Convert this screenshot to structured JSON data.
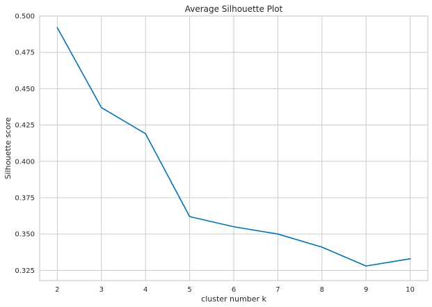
{
  "chart_data": {
    "type": "line",
    "title": "Average Silhouette Plot",
    "xlabel": "cluster number k",
    "ylabel": "Silhouette score",
    "x": [
      2,
      3,
      4,
      5,
      6,
      7,
      8,
      9,
      10
    ],
    "x_ticks": [
      "2",
      "3",
      "4",
      "5",
      "6",
      "7",
      "8",
      "9",
      "10"
    ],
    "xlim": [
      1.6,
      10.4
    ],
    "y_ticks": [
      "0.325",
      "0.350",
      "0.375",
      "0.400",
      "0.425",
      "0.450",
      "0.475",
      "0.500"
    ],
    "y_tick_values": [
      0.325,
      0.35,
      0.375,
      0.4,
      0.425,
      0.45,
      0.475,
      0.5
    ],
    "ylim": [
      0.318,
      0.5
    ],
    "grid": true,
    "series": [
      {
        "values": [
          0.492,
          0.437,
          0.419,
          0.362,
          0.355,
          0.35,
          0.341,
          0.328,
          0.333
        ],
        "color": "#0072b2"
      }
    ]
  }
}
